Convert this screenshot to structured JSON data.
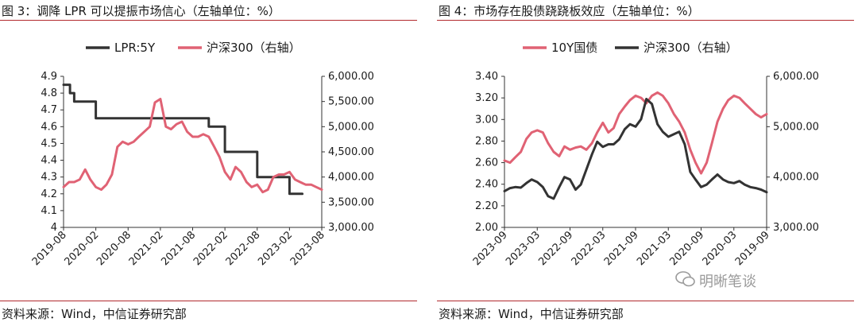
{
  "left": {
    "title": "图 3：调降 LPR 可以提振市场信心（左轴单位：%）",
    "source": "资料来源：Wind，中信证券研究部"
  },
  "right": {
    "title": "图 4：市场存在股债跷跷板效应（左轴单位：%）",
    "source": "资料来源：Wind，中信证券研究部"
  },
  "watermark": "明晰笔谈",
  "chart_data": [
    {
      "type": "line",
      "x_ticks": [
        "2019-08",
        "2020-02",
        "2020-08",
        "2021-02",
        "2021-08",
        "2022-02",
        "2022-08",
        "2023-02",
        "2023-08"
      ],
      "y_left": {
        "range": [
          4.0,
          4.9
        ],
        "ticks": [
          "4.9",
          "4.8",
          "4.7",
          "4.6",
          "4.5",
          "4.4",
          "4.3",
          "4.2",
          "4.1",
          "4"
        ]
      },
      "y_right": {
        "range": [
          3000,
          6000
        ],
        "ticks": [
          "6,000.00",
          "5,500.00",
          "5,000.00",
          "4,500.00",
          "4,000.00",
          "3,500.00",
          "3,000.00"
        ]
      },
      "legend": [
        "LPR:5Y",
        "沪深300（右轴）"
      ],
      "series": [
        {
          "name": "LPR:5Y",
          "axis": "left",
          "color": "#333333",
          "x": [
            0,
            0.1,
            0.1,
            0.2,
            0.2,
            0.3,
            0.3,
            0.33,
            0.33,
            1.0,
            1.0,
            1.1,
            1.1,
            4.2,
            4.2,
            4.5,
            4.5,
            4.8,
            4.8,
            5.0,
            5.0,
            6.0,
            6.0,
            6.1,
            6.1,
            6.3,
            6.3,
            7.0,
            7.0,
            7.2,
            7.2,
            7.4
          ],
          "y": [
            4.85,
            4.85,
            4.85,
            4.85,
            4.8,
            4.8,
            4.8,
            4.8,
            4.75,
            4.75,
            4.65,
            4.65,
            4.65,
            4.65,
            4.65,
            4.65,
            4.6,
            4.6,
            4.6,
            4.6,
            4.45,
            4.45,
            4.3,
            4.3,
            4.3,
            4.3,
            4.3,
            4.3,
            4.2,
            4.2,
            4.2,
            4.2
          ]
        },
        {
          "name": "沪深300（右轴）",
          "axis": "right",
          "color": "#e06274",
          "x": [
            0,
            0.17,
            0.33,
            0.5,
            0.67,
            0.83,
            1.0,
            1.17,
            1.33,
            1.5,
            1.67,
            1.83,
            2.0,
            2.17,
            2.33,
            2.5,
            2.67,
            2.83,
            3.0,
            3.17,
            3.33,
            3.5,
            3.67,
            3.83,
            4.0,
            4.17,
            4.33,
            4.5,
            4.67,
            4.83,
            5.0,
            5.17,
            5.33,
            5.5,
            5.67,
            5.83,
            6.0,
            6.17,
            6.33,
            6.5,
            6.67,
            6.83,
            7.0,
            7.17,
            7.33,
            7.5,
            7.67,
            7.83,
            8.0
          ],
          "y": [
            3800,
            3900,
            3900,
            3950,
            4150,
            3950,
            3800,
            3750,
            3850,
            4050,
            4600,
            4700,
            4650,
            4700,
            4800,
            4900,
            5000,
            5480,
            5550,
            5000,
            4950,
            5050,
            5100,
            4900,
            4800,
            4800,
            4850,
            4800,
            4600,
            4400,
            4100,
            3950,
            4200,
            4100,
            3900,
            3800,
            3850,
            3700,
            3750,
            4000,
            4050,
            4050,
            4100,
            3950,
            3900,
            3850,
            3850,
            3800,
            3750
          ]
        }
      ]
    },
    {
      "type": "line",
      "x_ticks": [
        "2023-09",
        "2023-03",
        "2022-09",
        "2022-03",
        "2021-09",
        "2021-03",
        "2020-09",
        "2020-03",
        "2019-09"
      ],
      "y_left": {
        "range": [
          2.0,
          3.4
        ],
        "ticks": [
          "3.40",
          "3.20",
          "3.00",
          "2.80",
          "2.60",
          "2.40",
          "2.20",
          "2.00"
        ]
      },
      "y_right": {
        "range": [
          3000,
          6000
        ],
        "ticks": [
          "6,000.00",
          "5,000.00",
          "4,000.00",
          "3,000.00"
        ]
      },
      "legend": [
        "10Y国债",
        "沪深300（右轴）"
      ],
      "series": [
        {
          "name": "10Y国债",
          "axis": "left",
          "color": "#e06274",
          "x": [
            0,
            0.17,
            0.33,
            0.5,
            0.67,
            0.83,
            1.0,
            1.17,
            1.33,
            1.5,
            1.67,
            1.83,
            2.0,
            2.17,
            2.33,
            2.5,
            2.67,
            2.83,
            3.0,
            3.17,
            3.33,
            3.5,
            3.67,
            3.83,
            4.0,
            4.17,
            4.33,
            4.5,
            4.67,
            4.83,
            5.0,
            5.17,
            5.33,
            5.5,
            5.67,
            5.83,
            6.0,
            6.17,
            6.33,
            6.5,
            6.67,
            6.83,
            7.0,
            7.17,
            7.33,
            7.5,
            7.67,
            7.83,
            8.0
          ],
          "y": [
            2.62,
            2.6,
            2.65,
            2.7,
            2.82,
            2.88,
            2.9,
            2.88,
            2.78,
            2.7,
            2.66,
            2.75,
            2.72,
            2.74,
            2.75,
            2.72,
            2.78,
            2.88,
            2.97,
            2.88,
            2.92,
            3.05,
            3.12,
            3.18,
            3.22,
            3.2,
            3.15,
            3.22,
            3.25,
            3.22,
            3.15,
            3.05,
            2.98,
            2.88,
            2.72,
            2.6,
            2.5,
            2.6,
            2.78,
            2.98,
            3.1,
            3.18,
            3.22,
            3.2,
            3.15,
            3.1,
            3.05,
            3.02,
            3.05
          ]
        },
        {
          "name": "沪深300（右轴）",
          "axis": "right",
          "color": "#333333",
          "x": [
            0,
            0.17,
            0.33,
            0.5,
            0.67,
            0.83,
            1.0,
            1.17,
            1.33,
            1.5,
            1.67,
            1.83,
            2.0,
            2.17,
            2.33,
            2.5,
            2.67,
            2.83,
            3.0,
            3.17,
            3.33,
            3.5,
            3.67,
            3.83,
            4.0,
            4.17,
            4.33,
            4.5,
            4.67,
            4.83,
            5.0,
            5.17,
            5.33,
            5.5,
            5.67,
            5.83,
            6.0,
            6.17,
            6.33,
            6.5,
            6.67,
            6.83,
            7.0,
            7.17,
            7.33,
            7.5,
            7.67,
            7.83,
            8.0
          ],
          "y": [
            3720,
            3780,
            3800,
            3790,
            3880,
            3950,
            3900,
            3800,
            3620,
            3570,
            3800,
            4000,
            3950,
            3750,
            3850,
            4150,
            4450,
            4700,
            4600,
            4650,
            4650,
            4750,
            4950,
            5050,
            5000,
            5150,
            5550,
            5450,
            5050,
            4900,
            4800,
            4850,
            4900,
            4650,
            4100,
            3950,
            3800,
            3850,
            3950,
            4050,
            3950,
            3900,
            3880,
            3920,
            3850,
            3800,
            3780,
            3750,
            3700
          ]
        }
      ]
    }
  ]
}
